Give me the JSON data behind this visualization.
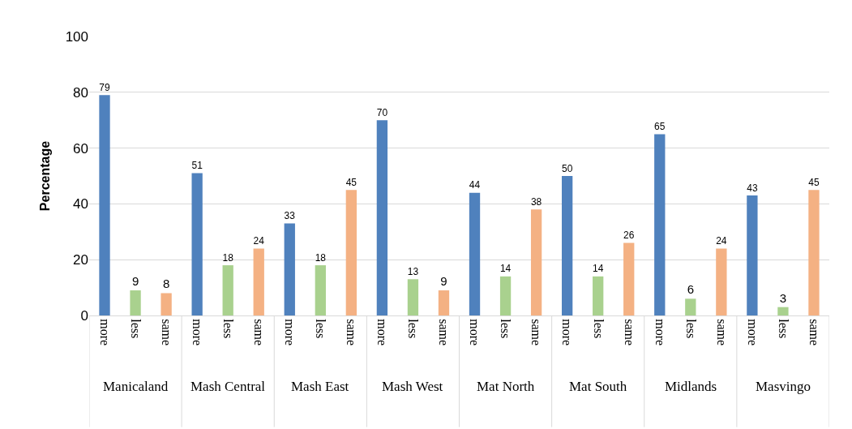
{
  "chart_data": {
    "type": "bar",
    "ylabel": "Percentage",
    "categories": [
      "more",
      "less",
      "same",
      "more",
      "less",
      "same",
      "more",
      "less",
      "same",
      "more",
      "less",
      "same",
      "more",
      "less",
      "same",
      "more",
      "less",
      "same",
      "more",
      "less",
      "same",
      "more",
      "less",
      "same"
    ],
    "values": [
      79,
      9,
      8,
      51,
      18,
      24,
      33,
      18,
      45,
      70,
      13,
      9,
      44,
      14,
      38,
      50,
      14,
      26,
      65,
      6,
      24,
      43,
      3,
      45
    ],
    "colors": [
      "#4f81bd",
      "#a9d18e",
      "#f4b183",
      "#4f81bd",
      "#a9d18e",
      "#f4b183",
      "#4f81bd",
      "#a9d18e",
      "#f4b183",
      "#4f81bd",
      "#a9d18e",
      "#f4b183",
      "#4f81bd",
      "#a9d18e",
      "#f4b183",
      "#4f81bd",
      "#a9d18e",
      "#f4b183",
      "#4f81bd",
      "#a9d18e",
      "#f4b183",
      "#4f81bd",
      "#a9d18e",
      "#f4b183"
    ],
    "annotations": [
      "Manicaland",
      "Mash Central",
      "Mash East",
      "Mash West",
      "Mat North",
      "Mat South",
      "Midlands",
      "Masvingo"
    ],
    "ylim": [
      0,
      100
    ],
    "yticks": [
      0,
      20,
      40,
      60,
      80,
      100
    ],
    "grid": "y",
    "data_labels": true,
    "legend": false
  }
}
